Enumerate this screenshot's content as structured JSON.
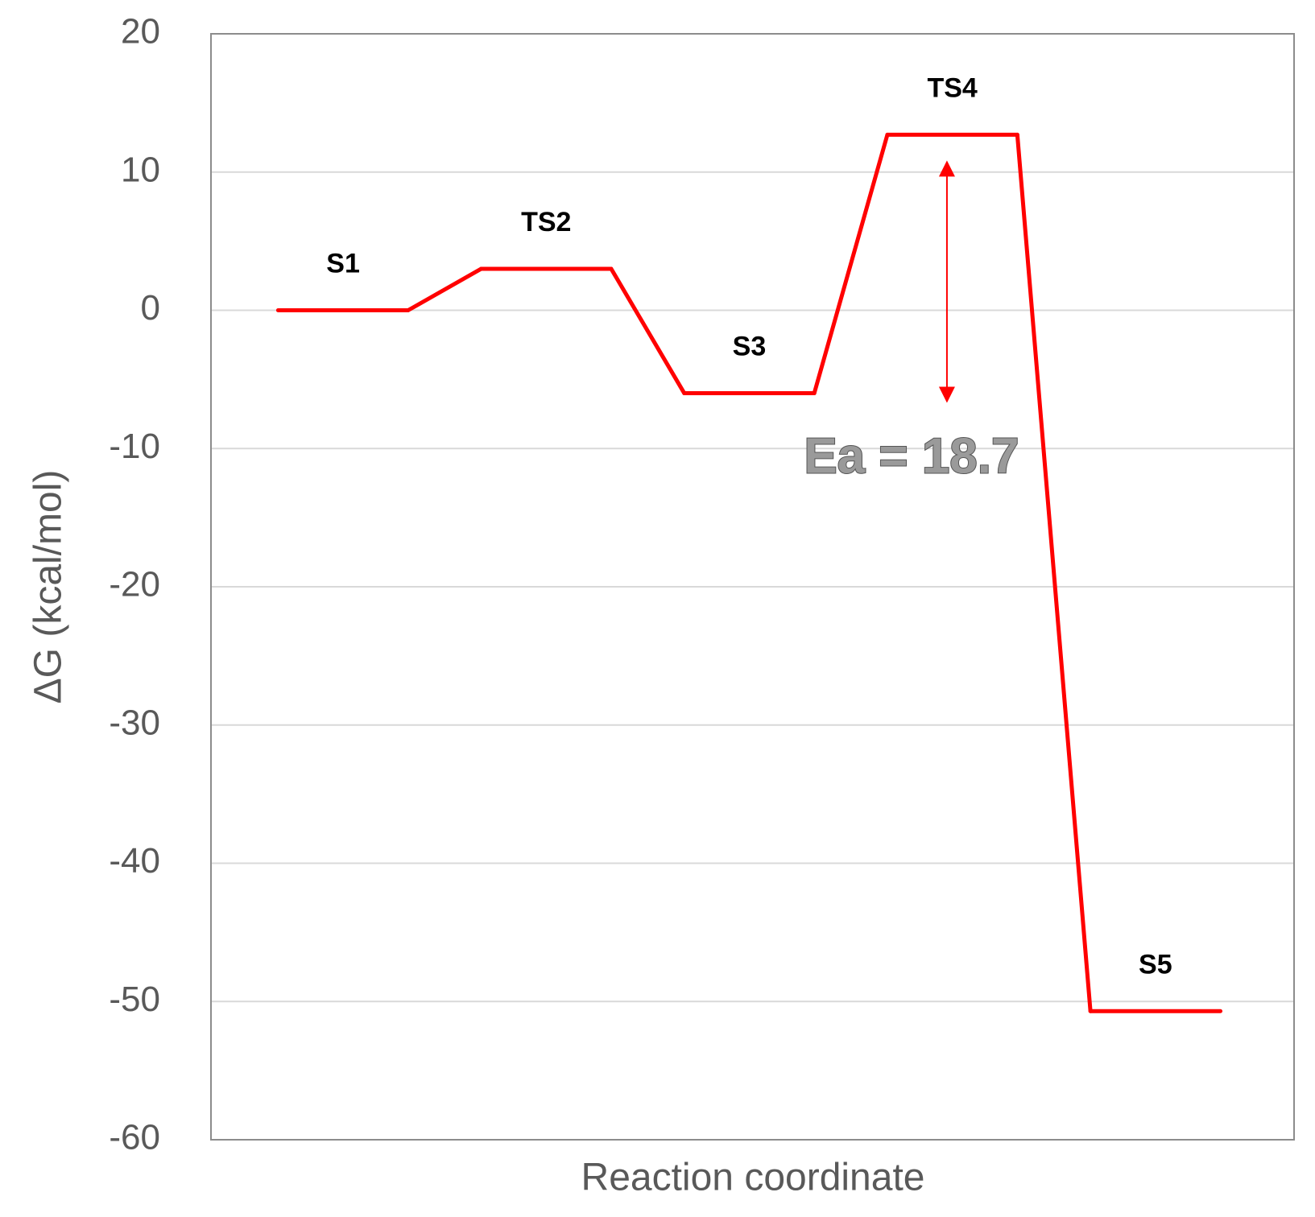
{
  "chart_data": {
    "type": "line",
    "ylabel": "ΔG (kcal/mol)",
    "xlabel": "Reaction coordinate",
    "categories": [
      "S1",
      "TS2",
      "S3",
      "TS4",
      "S5"
    ],
    "values": [
      0,
      3.0,
      -6.0,
      12.7,
      -50.7
    ],
    "color": "#ff0000",
    "ylim": [
      -60,
      20
    ],
    "yticks": [
      -60,
      -50,
      -40,
      -30,
      -20,
      -10,
      0,
      10,
      20
    ],
    "grid": true,
    "annotation": "Ea = 18.7"
  }
}
